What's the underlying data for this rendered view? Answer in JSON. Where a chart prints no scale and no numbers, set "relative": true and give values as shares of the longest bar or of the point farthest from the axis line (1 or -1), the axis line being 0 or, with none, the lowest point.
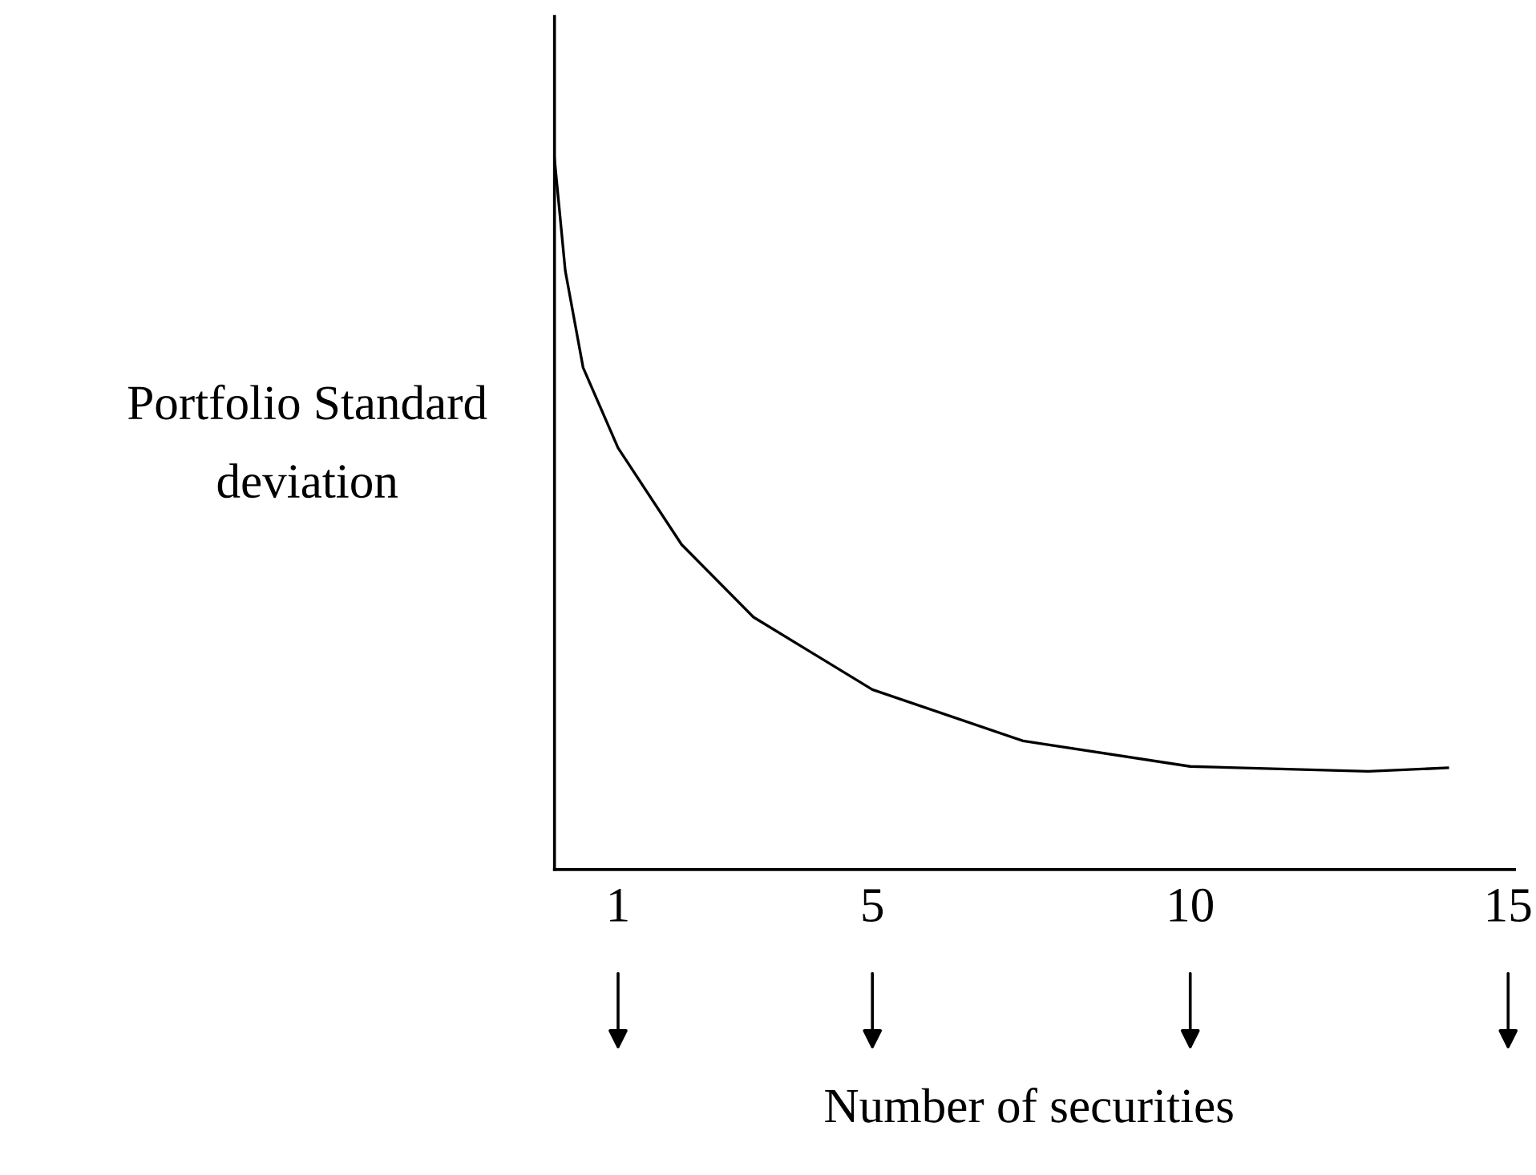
{
  "chart_data": {
    "type": "line",
    "relative": true,
    "xlabel": "Number of securities",
    "ylabel": "Portfolio Standard\ndeviation",
    "x": [
      0,
      0.17,
      0.45,
      1,
      2.0,
      3.13,
      5,
      7.37,
      10,
      12.8,
      14.05
    ],
    "series": [
      {
        "color": "#000000",
        "values": [
          1.0,
          0.842,
          0.706,
          0.593,
          0.457,
          0.355,
          0.253,
          0.181,
          0.145,
          0.138,
          0.143
        ]
      }
    ],
    "xlim": [
      0,
      15.1
    ],
    "xticks": [
      1,
      5,
      10,
      15
    ],
    "tick_labels": "x",
    "grid": false,
    "legend": false,
    "marker": "none",
    "line_style": "solid"
  }
}
